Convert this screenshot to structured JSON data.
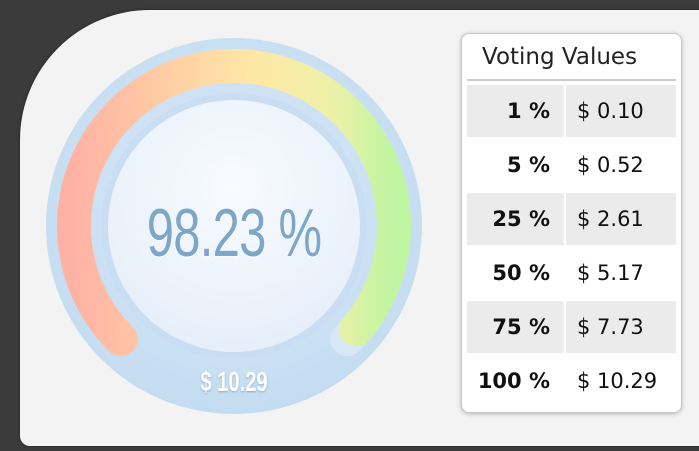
{
  "gauge": {
    "percent_label": "98.23 %",
    "amount_label": "$ 10.29",
    "level": 0.9823,
    "colors": {
      "low": "#ffb4a8",
      "mid": "#ffe2a8",
      "high": "#c2f5a0",
      "ring": "#cfe3f5"
    }
  },
  "voting_table": {
    "title": "Voting Values",
    "rows": [
      {
        "percent": "1 %",
        "value": "$ 0.10"
      },
      {
        "percent": "5 %",
        "value": "$ 0.52"
      },
      {
        "percent": "25 %",
        "value": "$ 2.61"
      },
      {
        "percent": "50 %",
        "value": "$ 5.17"
      },
      {
        "percent": "75 %",
        "value": "$ 7.73"
      },
      {
        "percent": "100 %",
        "value": "$ 10.29"
      }
    ]
  }
}
